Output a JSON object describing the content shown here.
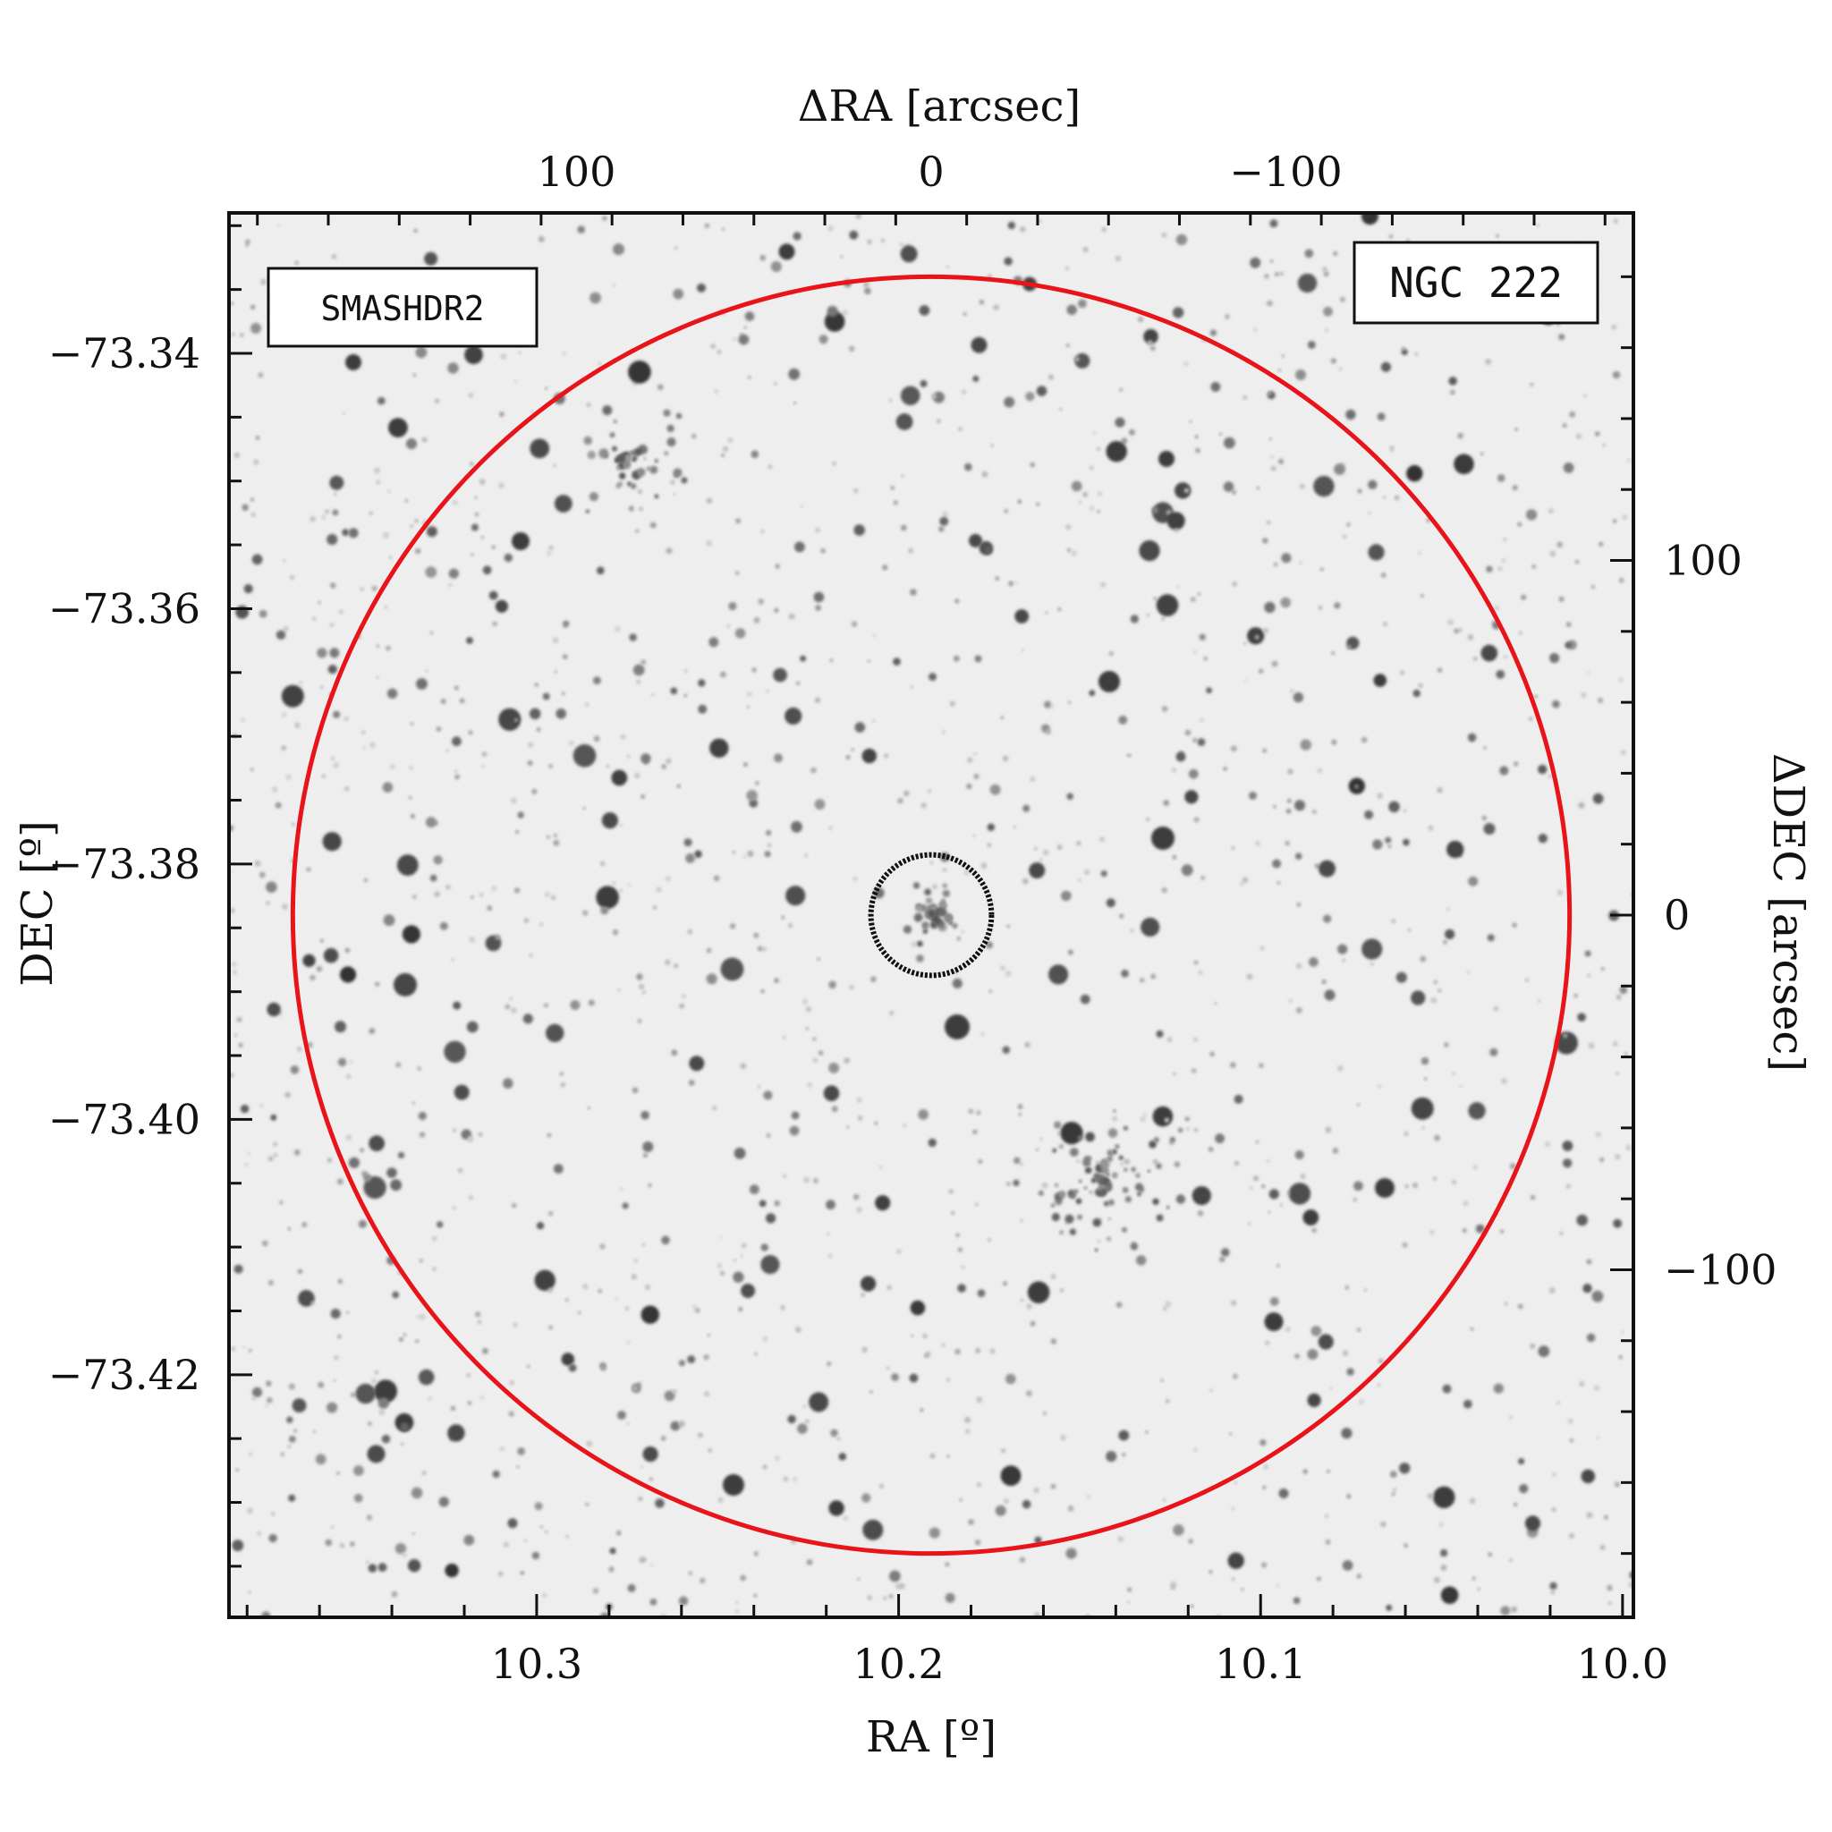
{
  "figure": {
    "image_label": "SMASHDR2",
    "object_label": "NGC 222",
    "colors": {
      "outer_circle": "#e8141a",
      "inner_circle": "#111111",
      "image_label": "#e8141a",
      "frame": "#111111"
    }
  },
  "axes": {
    "bottom": {
      "title": "RA [º]",
      "range": [
        10.385,
        9.997
      ],
      "ticks": [
        {
          "value": 10.3,
          "label": "10.3"
        },
        {
          "value": 10.2,
          "label": "10.2"
        },
        {
          "value": 10.1,
          "label": "10.1"
        },
        {
          "value": 10.0,
          "label": "10.0"
        }
      ]
    },
    "left": {
      "title": "DEC [º]",
      "range": [
        -73.329,
        -73.439
      ],
      "ticks": [
        {
          "value": -73.34,
          "label": "−73.34"
        },
        {
          "value": -73.36,
          "label": "−73.36"
        },
        {
          "value": -73.38,
          "label": "−73.38"
        },
        {
          "value": -73.4,
          "label": "−73.40"
        },
        {
          "value": -73.42,
          "label": "−73.42"
        }
      ]
    },
    "top": {
      "title": "ΔRA [arcsec]",
      "range": [
        198,
        -198
      ],
      "ticks": [
        {
          "value": 100,
          "label": "100"
        },
        {
          "value": 0,
          "label": "0"
        },
        {
          "value": -100,
          "label": "−100"
        }
      ]
    },
    "right": {
      "title": "ΔDEC [arcsec]",
      "range": [
        198,
        -198
      ],
      "ticks": [
        {
          "value": 100,
          "label": "100"
        },
        {
          "value": 0,
          "label": "0"
        },
        {
          "value": -100,
          "label": "−100"
        }
      ]
    }
  },
  "overlays": {
    "outer_circle_radius_arcsec": 180,
    "inner_circle_radius_arcsec": 17,
    "center_offset_arcsec": [
      0,
      0
    ]
  }
}
